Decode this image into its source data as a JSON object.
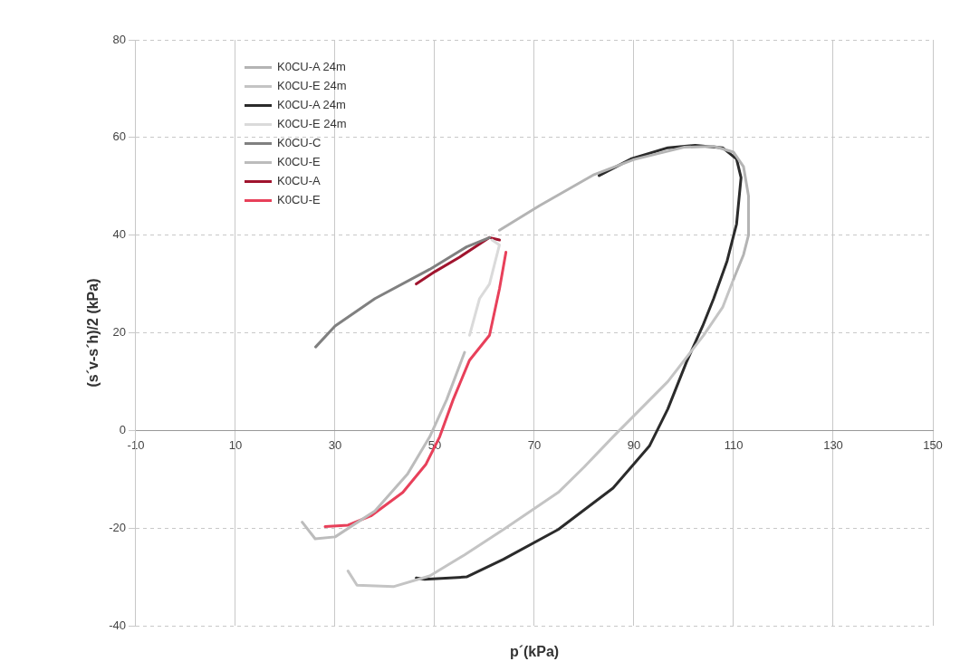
{
  "chart_data": {
    "type": "line",
    "xlabel": "p´(kPa)",
    "ylabel": "(s´v-s´h)/2 (kPa)",
    "xlim": [
      -10,
      150
    ],
    "xticks": [
      -10,
      10,
      30,
      50,
      70,
      90,
      110,
      130,
      150
    ],
    "ylim": [
      -40,
      80
    ],
    "yticks": [
      -40,
      -20,
      0,
      20,
      40,
      60,
      80
    ],
    "grid": true,
    "legend": "top left",
    "marker": "none",
    "series": [
      {
        "name": "K0CU-A 24m",
        "color": "#b4b4b4",
        "x": [
          63,
          71,
          82,
          90,
          100,
          106,
          110,
          112,
          113,
          113,
          112,
          110
        ],
        "values": [
          41,
          46,
          52.4,
          55.5,
          58,
          58.2,
          57,
          54,
          48,
          40,
          36,
          31
        ]
      },
      {
        "name": "K0CU-E 24m",
        "color": "#c4c4c4",
        "x": [
          32.6,
          34.4,
          41.7,
          49,
          56,
          63.8,
          74.8,
          80,
          85.8,
          96.8,
          104,
          107.8,
          110
        ],
        "values": [
          -28.8,
          -31.7,
          -32,
          -29.8,
          -25.5,
          -20.3,
          -12.7,
          -7.5,
          -1.3,
          10,
          19.5,
          25.2,
          31
        ]
      },
      {
        "name": "K0CU-A 24m",
        "color": "#2b2b2b",
        "x": [
          46.3,
          48,
          56.4,
          63.8,
          74.8,
          85.8,
          93.1,
          96.8,
          100.5,
          103.8,
          106,
          108.7,
          110.6,
          111.5,
          110.6,
          107.8,
          102.3,
          96.8,
          89.4,
          83
        ],
        "values": [
          -30.2,
          -30.5,
          -30,
          -26.4,
          -20.3,
          -11.8,
          -3.2,
          4.4,
          13.9,
          21.4,
          27,
          34.7,
          42.3,
          51.8,
          55.6,
          57.9,
          58.4,
          57.9,
          55.6,
          52.2
        ]
      },
      {
        "name": "K0CU-E 24m",
        "color": "#dadada",
        "x": [
          61.5,
          63,
          61,
          59,
          57
        ],
        "values": [
          39,
          38,
          30,
          27,
          19.5
        ]
      },
      {
        "name": "K0CU-C",
        "color": "#808080",
        "x": [
          26.1,
          30,
          38,
          49,
          56.4,
          61
        ],
        "values": [
          17.1,
          21.4,
          27,
          33,
          37.6,
          39.5
        ]
      },
      {
        "name": "K0CU-E",
        "color": "#bcbcbc",
        "x": [
          56,
          52.4,
          49,
          44.5,
          38,
          30,
          26,
          23.4
        ],
        "values": [
          16,
          6.3,
          -1.3,
          -9,
          -16.5,
          -21.8,
          -22.2,
          -18.8
        ]
      },
      {
        "name": "K0CU-A",
        "color": "#a0142e",
        "x": [
          46.3,
          50,
          55,
          61,
          63
        ],
        "values": [
          30,
          32.5,
          35.5,
          39.5,
          39
        ]
      },
      {
        "name": "K0CU-E",
        "color": "#e8405a",
        "x": [
          64.3,
          63,
          61,
          57,
          53.7,
          51,
          48.2,
          43.6,
          37.2,
          32.6,
          28
        ],
        "values": [
          36.5,
          29,
          19.5,
          14.4,
          6.3,
          -1.3,
          -7,
          -12.7,
          -17.5,
          -19.4,
          -19.7
        ]
      }
    ]
  }
}
